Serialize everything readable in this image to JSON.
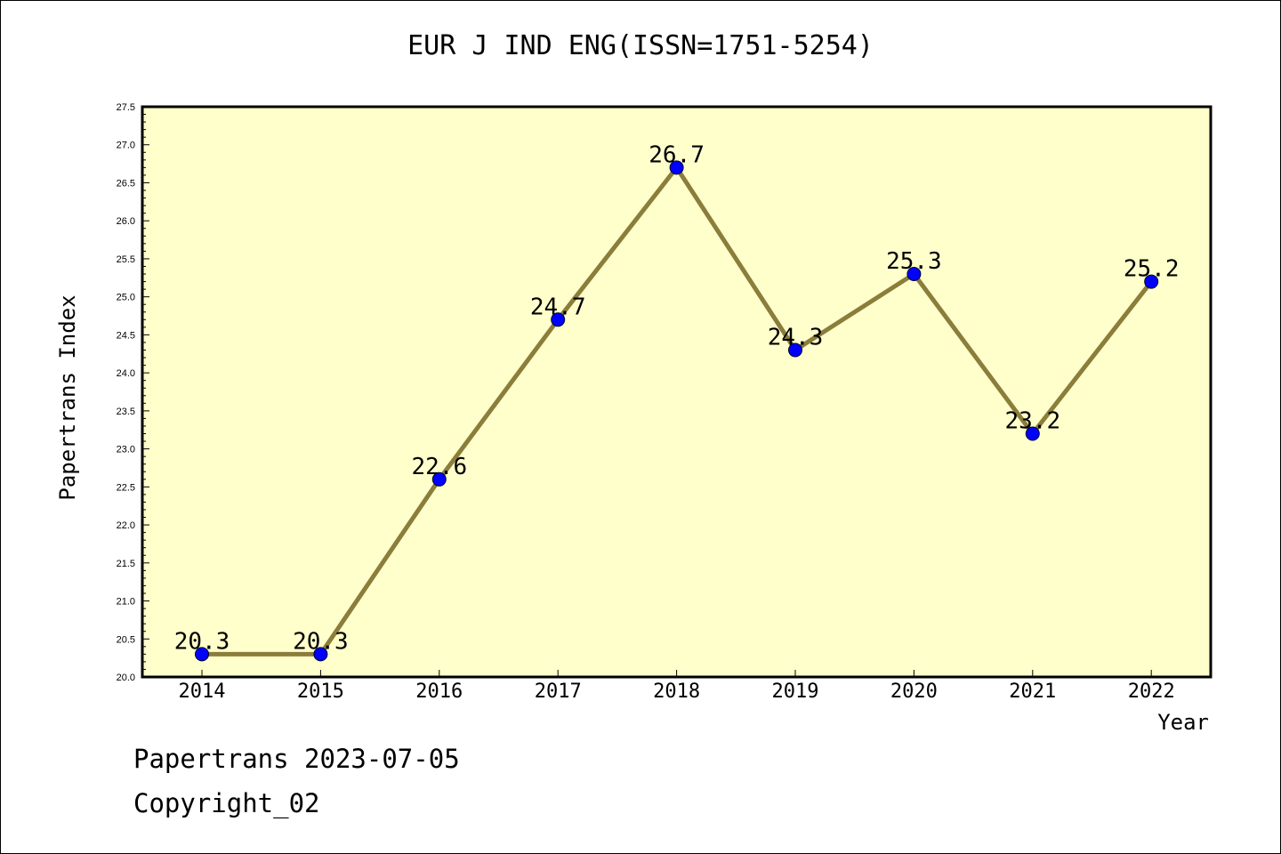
{
  "chart_data": {
    "type": "line",
    "title": "EUR J IND ENG(ISSN=1751-5254)",
    "xlabel": "Year",
    "ylabel": "Papertrans Index",
    "categories": [
      "2014",
      "2015",
      "2016",
      "2017",
      "2018",
      "2019",
      "2020",
      "2021",
      "2022"
    ],
    "series": [
      {
        "values": [
          20.3,
          20.3,
          22.6,
          24.7,
          26.7,
          24.3,
          25.3,
          23.2,
          25.2
        ],
        "data_labels": [
          "20.3",
          "20.3",
          "22.6",
          "24.7",
          "26.7",
          "24.3",
          "25.3",
          "23.2",
          "25.2"
        ]
      }
    ],
    "ylim": [
      20.0,
      27.5
    ],
    "y_ticks": [
      "20.0",
      "20.5",
      "21.0",
      "21.5",
      "22.0",
      "22.5",
      "23.0",
      "23.5",
      "24.0",
      "24.5",
      "25.0",
      "25.5",
      "26.0",
      "26.5",
      "27.0",
      "27.5"
    ],
    "grid": false,
    "legend": "none",
    "colors": {
      "plot_background": "#ffffcc",
      "line": "#8b7d3a",
      "marker": "#0000ff"
    }
  },
  "footer": {
    "line1": "Papertrans 2023-07-05",
    "line2": "Copyright_02"
  }
}
